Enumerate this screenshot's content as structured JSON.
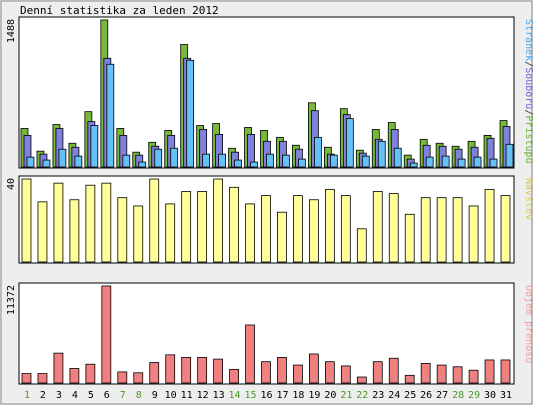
{
  "title": "Denní statistika za leden 2012",
  "colors": {
    "frame_bg": "#eeeeee",
    "panel_bg": "#ffffff",
    "border": "#000000",
    "pristupy": "#76b938",
    "soubory": "#8080e0",
    "stranky": "#66c0f8",
    "navstevy": "#ffff99",
    "prenos": "#f08080",
    "weekend_label": "#4a9a2a",
    "day_label": "#000000"
  },
  "chart_data": [
    {
      "type": "bar",
      "panel": "requests",
      "ymax_label": "1488",
      "ylim": [
        0,
        1488
      ],
      "legend": {
        "parts": [
          {
            "text": "Stránek",
            "color": "#4aa8e8"
          },
          {
            "text": "/",
            "color": "#333333"
          },
          {
            "text": "Souborů",
            "color": "#6a6ad8"
          },
          {
            "text": "/",
            "color": "#333333"
          },
          {
            "text": "Přístupů",
            "color": "#6ab030"
          }
        ]
      },
      "categories": [
        "1",
        "2",
        "3",
        "4",
        "5",
        "6",
        "7",
        "8",
        "9",
        "10",
        "11",
        "12",
        "13",
        "14",
        "15",
        "16",
        "17",
        "18",
        "19",
        "20",
        "21",
        "22",
        "23",
        "24",
        "25",
        "26",
        "27",
        "28",
        "29",
        "30",
        "31"
      ],
      "series": [
        {
          "name": "Přístupů",
          "color": "#76b938",
          "values": [
            390,
            160,
            430,
            240,
            560,
            1488,
            390,
            150,
            250,
            370,
            1240,
            420,
            440,
            190,
            400,
            370,
            300,
            220,
            650,
            200,
            590,
            170,
            380,
            450,
            120,
            280,
            240,
            210,
            260,
            320,
            470
          ]
        },
        {
          "name": "Souborů",
          "color": "#8080e0",
          "values": [
            320,
            130,
            390,
            200,
            460,
            1100,
            320,
            120,
            210,
            320,
            1100,
            380,
            330,
            150,
            330,
            260,
            260,
            180,
            570,
            130,
            530,
            140,
            280,
            380,
            80,
            220,
            210,
            180,
            200,
            290,
            410
          ]
        },
        {
          "name": "Stránek",
          "color": "#66c0f8",
          "values": [
            100,
            70,
            180,
            110,
            420,
            1040,
            120,
            50,
            180,
            190,
            1080,
            130,
            130,
            70,
            50,
            130,
            120,
            80,
            300,
            120,
            490,
            110,
            260,
            190,
            40,
            100,
            110,
            80,
            100,
            80,
            230
          ]
        }
      ]
    },
    {
      "type": "bar",
      "panel": "visits",
      "ymax_label": "40",
      "ylim": [
        0,
        40
      ],
      "legend": {
        "parts": [
          {
            "text": "Návštěv",
            "color": "#d6c860"
          }
        ]
      },
      "categories": [
        "1",
        "2",
        "3",
        "4",
        "5",
        "6",
        "7",
        "8",
        "9",
        "10",
        "11",
        "12",
        "13",
        "14",
        "15",
        "16",
        "17",
        "18",
        "19",
        "20",
        "21",
        "22",
        "23",
        "24",
        "25",
        "26",
        "27",
        "28",
        "29",
        "30",
        "31"
      ],
      "series": [
        {
          "name": "Návštěv",
          "color": "#ffff99",
          "values": [
            40,
            29,
            38,
            30,
            37,
            38,
            31,
            27,
            40,
            28,
            34,
            34,
            40,
            36,
            28,
            32,
            24,
            32,
            30,
            35,
            32,
            16,
            34,
            33,
            23,
            31,
            31,
            31,
            27,
            35,
            32
          ]
        }
      ]
    },
    {
      "type": "bar",
      "panel": "traffic",
      "ymax_label": "11372",
      "ylim": [
        0,
        11372
      ],
      "legend": {
        "parts": [
          {
            "text": "Objem přenosu",
            "color": "#f0a0a0"
          }
        ]
      },
      "categories": [
        "1",
        "2",
        "3",
        "4",
        "5",
        "6",
        "7",
        "8",
        "9",
        "10",
        "11",
        "12",
        "13",
        "14",
        "15",
        "16",
        "17",
        "18",
        "19",
        "20",
        "21",
        "22",
        "23",
        "24",
        "25",
        "26",
        "27",
        "28",
        "29",
        "30",
        "31"
      ],
      "series": [
        {
          "name": "Objem přenosu",
          "color": "#f08080",
          "values": [
            1100,
            1100,
            3500,
            1700,
            2200,
            11372,
            1300,
            1200,
            2400,
            3300,
            3000,
            3000,
            2800,
            1600,
            6800,
            2500,
            3000,
            2100,
            3400,
            2500,
            2000,
            700,
            2500,
            2900,
            900,
            2300,
            2100,
            1900,
            1500,
            2700,
            2700
          ]
        }
      ]
    }
  ],
  "weekend_days": [
    "1",
    "7",
    "8",
    "14",
    "15",
    "21",
    "22",
    "28",
    "29"
  ]
}
